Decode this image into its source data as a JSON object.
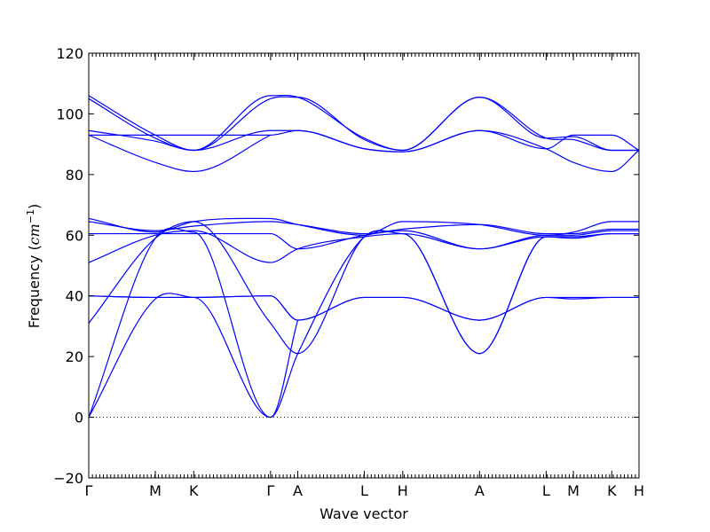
{
  "chart_data": {
    "type": "line",
    "title": "",
    "xlabel": "Wave vector",
    "ylabel": "Frequency",
    "ylabel_unit": "cm",
    "ylabel_unit_exp": "−1",
    "ylim": [
      -20,
      120
    ],
    "y_ticks": [
      -20,
      0,
      20,
      40,
      60,
      80,
      100,
      120
    ],
    "zero_line": true,
    "grid": false,
    "legend": "none",
    "line_color": "#0000ff",
    "kpath": [
      {
        "label": "Γ",
        "x": 0.0
      },
      {
        "label": "M",
        "x": 0.577
      },
      {
        "label": "K",
        "x": 0.91
      },
      {
        "label": "Γ",
        "x": 1.576
      },
      {
        "label": "A",
        "x": 1.812
      },
      {
        "label": "L",
        "x": 2.389
      },
      {
        "label": "H",
        "x": 2.722
      },
      {
        "label": "A",
        "x": 3.388
      },
      {
        "label": "L",
        "x": 3.965
      },
      {
        "label": "M",
        "x": 4.201
      },
      {
        "label": "K",
        "x": 4.534
      },
      {
        "label": "H",
        "x": 4.77
      }
    ],
    "series": [
      {
        "x": [
          0.0,
          0.577,
          0.91,
          1.576,
          1.812,
          2.389,
          2.722,
          3.388,
          3.965,
          4.201,
          4.534,
          4.77
        ],
        "y": [
          106.0,
          93.0,
          88.0,
          106.0,
          105.5,
          92.0,
          88.0,
          105.5,
          92.0,
          92.5,
          88.0,
          88.0
        ]
      },
      {
        "x": [
          0.0,
          0.577,
          0.91,
          1.576,
          1.812,
          2.389,
          2.722,
          3.388,
          3.965,
          4.201,
          4.534,
          4.77
        ],
        "y": [
          105.0,
          92.0,
          88.0,
          105.0,
          105.5,
          91.5,
          88.0,
          105.5,
          92.0,
          91.5,
          88.0,
          88.0
        ]
      },
      {
        "x": [
          0.0,
          0.577,
          0.91,
          1.576,
          1.812,
          2.389,
          2.722,
          3.388,
          3.965,
          4.201,
          4.534,
          4.77
        ],
        "y": [
          94.5,
          91.0,
          88.0,
          94.5,
          94.5,
          88.5,
          87.5,
          94.5,
          88.5,
          93.0,
          93.0,
          88.0
        ]
      },
      {
        "x": [
          0.0,
          0.577,
          0.91,
          1.576,
          1.812,
          2.389,
          2.722,
          3.388,
          3.965,
          4.201,
          4.534,
          4.77
        ],
        "y": [
          93.0,
          93.0,
          93.0,
          93.0,
          94.5,
          88.5,
          87.5,
          94.5,
          88.5,
          84.0,
          81.0,
          88.0
        ]
      },
      {
        "x": [
          0.0,
          0.577,
          0.91,
          1.576
        ],
        "y": [
          93.0,
          84.0,
          81.0,
          93.0
        ]
      },
      {
        "x": [
          0.0,
          0.577,
          0.91,
          1.576,
          1.812,
          2.389,
          2.722,
          3.388,
          3.965,
          4.201,
          4.534,
          4.77
        ],
        "y": [
          65.5,
          61.0,
          64.5,
          65.5,
          63.5,
          60.0,
          64.5,
          63.5,
          60.0,
          61.0,
          64.5,
          64.5
        ]
      },
      {
        "x": [
          0.0,
          0.577,
          0.91,
          1.576,
          1.812,
          2.389,
          2.722,
          3.388,
          3.965,
          4.201,
          4.534,
          4.77
        ],
        "y": [
          64.5,
          61.5,
          63.0,
          64.5,
          63.5,
          60.5,
          62.0,
          63.5,
          60.5,
          60.5,
          62.0,
          62.0
        ]
      },
      {
        "x": [
          0.0,
          0.577,
          0.91,
          1.576,
          1.812,
          2.389,
          2.722,
          3.388,
          3.965,
          4.201,
          4.534,
          4.77
        ],
        "y": [
          60.5,
          60.5,
          60.5,
          60.5,
          55.5,
          60.0,
          61.5,
          55.5,
          60.0,
          60.0,
          61.5,
          61.5
        ]
      },
      {
        "x": [
          0.0,
          0.577,
          0.91,
          1.576,
          1.812,
          2.389,
          2.722,
          3.388,
          3.965,
          4.201,
          4.534,
          4.77
        ],
        "y": [
          51.0,
          60.0,
          61.5,
          51.0,
          55.5,
          59.5,
          60.5,
          55.5,
          59.5,
          59.0,
          60.5,
          60.5
        ]
      },
      {
        "x": [
          0.0,
          0.577,
          0.91,
          1.576,
          1.812,
          2.389,
          2.722,
          3.388,
          3.965,
          4.201,
          4.534,
          4.77
        ],
        "y": [
          31.0,
          59.0,
          64.5,
          31.0,
          21.0,
          59.5,
          60.5,
          21.0,
          59.5,
          59.5,
          60.5,
          60.5
        ]
      },
      {
        "x": [
          0.0,
          0.577,
          0.91,
          1.576,
          1.812,
          2.389,
          2.722,
          3.388,
          3.965,
          4.201,
          4.534,
          4.77
        ],
        "y": [
          0.0,
          59.0,
          61.0,
          0.0,
          21.0,
          59.5,
          60.5,
          21.0,
          59.5,
          59.5,
          60.5,
          60.5
        ]
      },
      {
        "x": [
          0.0,
          0.577,
          0.91,
          1.576,
          1.812,
          2.389,
          2.722,
          3.388,
          3.965,
          4.201,
          4.534,
          4.77
        ],
        "y": [
          40.0,
          39.5,
          39.5,
          40.0,
          32.0,
          39.5,
          39.5,
          32.0,
          39.5,
          39.5,
          39.5,
          39.5
        ]
      },
      {
        "x": [
          0.0,
          0.577,
          0.91,
          1.576,
          1.812,
          2.389,
          2.722,
          3.388,
          3.965,
          4.201,
          4.534,
          4.77
        ],
        "y": [
          40.0,
          39.5,
          39.5,
          40.0,
          32.0,
          39.5,
          39.5,
          32.0,
          39.5,
          39.0,
          39.5,
          39.5
        ]
      },
      {
        "x": [
          0.0,
          0.577,
          0.91,
          1.576,
          1.812
        ],
        "y": [
          0.0,
          39.0,
          39.5,
          0.0,
          32.0
        ]
      }
    ]
  }
}
